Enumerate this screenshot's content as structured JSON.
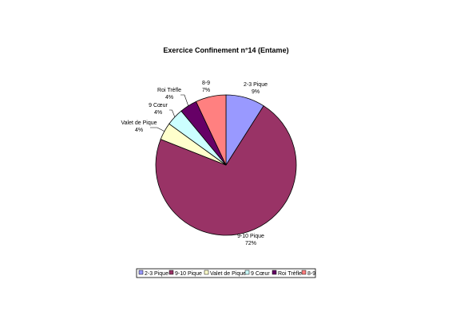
{
  "chart_data": {
    "type": "pie",
    "title": "Exercice Confinement n°14 (Entame)",
    "categories": [
      "2-3 Pique",
      "9-10 Pique",
      "Valet de Pique",
      "9 Cœur",
      "Roi Trèfle",
      "8-9"
    ],
    "values": [
      9,
      72,
      4,
      4,
      4,
      7
    ],
    "value_labels": [
      "9%",
      "72%",
      "4%",
      "4%",
      "4%",
      "7%"
    ],
    "colors": [
      "#9999ff",
      "#993366",
      "#ffffcc",
      "#ccffff",
      "#660066",
      "#ff8080"
    ],
    "legend_position": "bottom",
    "start_angle": "12 o'clock, clockwise"
  }
}
